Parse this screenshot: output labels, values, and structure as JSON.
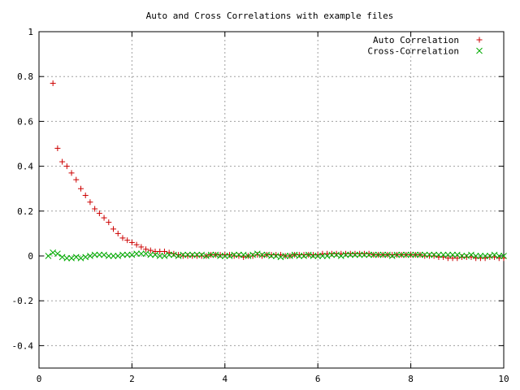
{
  "chart_data": {
    "type": "scatter",
    "title": "Auto and Cross Correlations with example files",
    "xlabel": "",
    "ylabel": "",
    "xlim": [
      0,
      10
    ],
    "ylim": [
      -0.5,
      1
    ],
    "xticks": [
      0,
      2,
      4,
      6,
      8,
      10
    ],
    "yticks": [
      1,
      0.8,
      0.6,
      0.4,
      0.2,
      0,
      -0.2,
      -0.4
    ],
    "grid": true,
    "legend_position": "top-right",
    "series": [
      {
        "name": "Auto Correlation",
        "marker": "plus",
        "color": "#cc0000",
        "x": [
          0.3,
          0.4,
          0.5,
          0.6,
          0.7,
          0.8,
          0.9,
          1.0,
          1.1,
          1.2,
          1.3,
          1.4,
          1.5,
          1.6,
          1.7,
          1.8,
          1.9,
          2.0,
          2.1,
          2.2,
          2.3,
          2.4,
          2.5,
          2.6,
          2.7,
          2.8,
          2.9,
          3.0,
          3.1,
          3.2,
          3.3,
          3.4,
          3.5,
          3.6,
          3.7,
          3.8,
          3.9,
          4.0,
          4.1,
          4.2,
          4.3,
          4.4,
          4.5,
          4.6,
          4.7,
          4.8,
          4.9,
          5.0,
          5.1,
          5.2,
          5.3,
          5.4,
          5.5,
          5.6,
          5.7,
          5.8,
          5.9,
          6.0,
          6.1,
          6.2,
          6.3,
          6.4,
          6.5,
          6.6,
          6.7,
          6.8,
          6.9,
          7.0,
          7.1,
          7.2,
          7.3,
          7.4,
          7.5,
          7.6,
          7.7,
          7.8,
          7.9,
          8.0,
          8.1,
          8.2,
          8.3,
          8.4,
          8.5,
          8.6,
          8.7,
          8.8,
          8.9,
          9.0,
          9.1,
          9.2,
          9.3,
          9.4,
          9.5,
          9.6,
          9.7,
          9.8,
          9.9,
          10.0
        ],
        "y": [
          0.77,
          0.48,
          0.42,
          0.4,
          0.37,
          0.34,
          0.3,
          0.27,
          0.24,
          0.21,
          0.19,
          0.17,
          0.15,
          0.12,
          0.1,
          0.08,
          0.07,
          0.06,
          0.05,
          0.04,
          0.03,
          0.025,
          0.02,
          0.02,
          0.02,
          0.015,
          0.01,
          0.005,
          0.0,
          0.0,
          0.0,
          0.0,
          0.0,
          0.0,
          0.005,
          0.005,
          0.005,
          0.005,
          0.005,
          0.0,
          0.0,
          -0.005,
          0.0,
          0.0,
          0.005,
          0.0,
          0.005,
          0.005,
          0.005,
          0.005,
          0.0,
          0.0,
          0.005,
          0.005,
          0.005,
          0.005,
          0.005,
          0.005,
          0.01,
          0.01,
          0.01,
          0.01,
          0.01,
          0.01,
          0.01,
          0.01,
          0.01,
          0.01,
          0.01,
          0.005,
          0.005,
          0.005,
          0.005,
          0.005,
          0.005,
          0.005,
          0.005,
          0.005,
          0.005,
          0.005,
          0.0,
          0.0,
          0.0,
          -0.005,
          -0.005,
          -0.01,
          -0.01,
          -0.01,
          -0.005,
          -0.005,
          -0.005,
          -0.01,
          -0.01,
          -0.01,
          -0.005,
          -0.005,
          -0.01,
          -0.01
        ]
      },
      {
        "name": "Cross-Correlation",
        "marker": "cross",
        "color": "#00aa00",
        "x": [
          0.2,
          0.3,
          0.4,
          0.5,
          0.6,
          0.7,
          0.8,
          0.9,
          1.0,
          1.1,
          1.2,
          1.3,
          1.4,
          1.5,
          1.6,
          1.7,
          1.8,
          1.9,
          2.0,
          2.1,
          2.2,
          2.3,
          2.4,
          2.5,
          2.6,
          2.7,
          2.8,
          2.9,
          3.0,
          3.1,
          3.2,
          3.3,
          3.4,
          3.5,
          3.6,
          3.7,
          3.8,
          3.9,
          4.0,
          4.1,
          4.2,
          4.3,
          4.4,
          4.5,
          4.6,
          4.7,
          4.8,
          4.9,
          5.0,
          5.1,
          5.2,
          5.3,
          5.4,
          5.5,
          5.6,
          5.7,
          5.8,
          5.9,
          6.0,
          6.1,
          6.2,
          6.3,
          6.4,
          6.5,
          6.6,
          6.7,
          6.8,
          6.9,
          7.0,
          7.1,
          7.2,
          7.3,
          7.4,
          7.5,
          7.6,
          7.7,
          7.8,
          7.9,
          8.0,
          8.1,
          8.2,
          8.3,
          8.4,
          8.5,
          8.6,
          8.7,
          8.8,
          8.9,
          9.0,
          9.1,
          9.2,
          9.3,
          9.4,
          9.5,
          9.6,
          9.7,
          9.8,
          9.9,
          10.0
        ],
        "y": [
          0.0,
          0.015,
          0.01,
          -0.005,
          -0.01,
          -0.01,
          -0.005,
          -0.01,
          -0.005,
          0.0,
          0.005,
          0.005,
          0.005,
          0.0,
          0.0,
          0.0,
          0.005,
          0.005,
          0.005,
          0.01,
          0.01,
          0.01,
          0.005,
          0.005,
          0.0,
          0.0,
          0.005,
          0.005,
          0.0,
          0.005,
          0.005,
          0.005,
          0.005,
          0.005,
          0.0,
          0.005,
          0.005,
          0.0,
          0.0,
          0.0,
          0.005,
          0.005,
          0.005,
          0.0,
          0.005,
          0.01,
          0.005,
          0.005,
          0.0,
          0.0,
          -0.005,
          0.0,
          0.0,
          0.005,
          0.0,
          0.0,
          0.005,
          0.0,
          0.0,
          0.0,
          0.0,
          0.005,
          0.005,
          0.0,
          0.005,
          0.005,
          0.005,
          0.005,
          0.005,
          0.005,
          0.005,
          0.005,
          0.005,
          0.005,
          0.0,
          0.005,
          0.005,
          0.005,
          0.005,
          0.005,
          0.005,
          0.005,
          0.005,
          0.005,
          0.005,
          0.005,
          0.005,
          0.005,
          0.005,
          0.0,
          0.0,
          0.005,
          0.0,
          0.0,
          0.0,
          0.0,
          0.005,
          0.0,
          0.0
        ]
      }
    ]
  }
}
